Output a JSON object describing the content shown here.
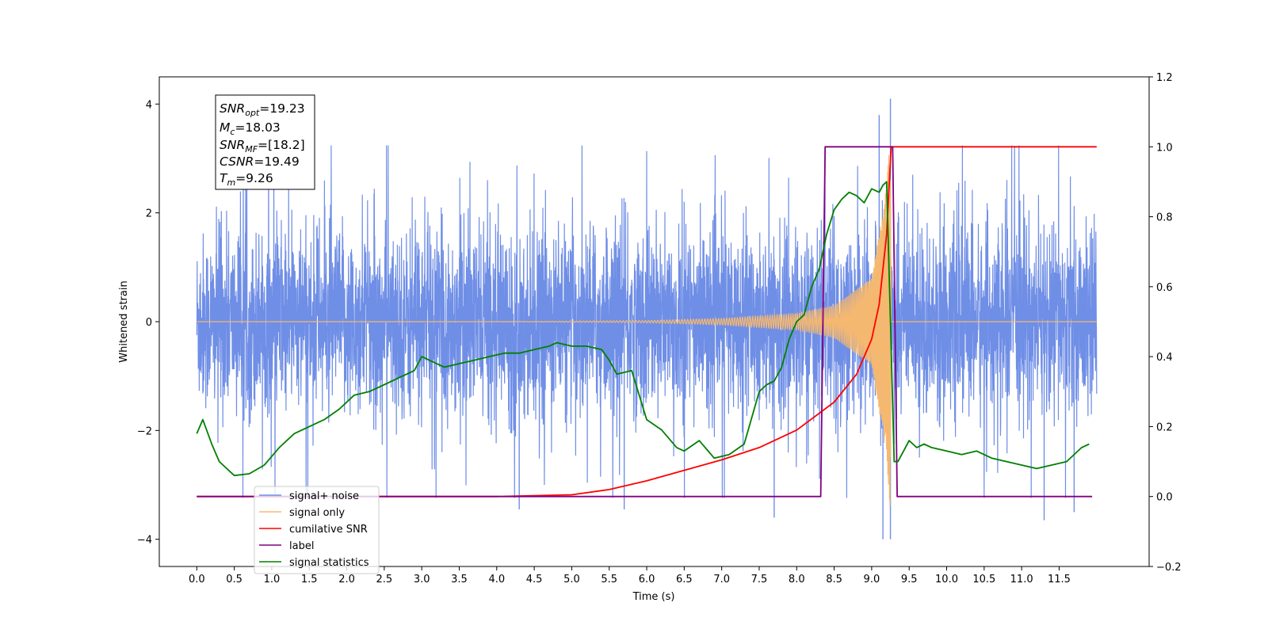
{
  "chart_data": {
    "type": "line",
    "xlabel": "Time (s)",
    "ylabel_left": "Whitened strain",
    "ylabel_right": "",
    "xlim": [
      -0.5,
      12.7
    ],
    "ylim_left": [
      -4.5,
      4.5
    ],
    "ylim_right": [
      -0.2,
      1.2
    ],
    "x_ticks": [
      0.0,
      0.5,
      1.0,
      1.5,
      2.0,
      2.5,
      3.0,
      3.5,
      4.0,
      4.5,
      5.0,
      5.5,
      6.0,
      6.5,
      7.0,
      7.5,
      8.0,
      8.5,
      9.0,
      9.5,
      10.0,
      10.5,
      11.0,
      11.5
    ],
    "x_tick_labels": [
      "0.0",
      "0.5",
      "1.0",
      "1.5",
      "2.0",
      "2.5",
      "3.0",
      "3.5",
      "4.0",
      "4.5",
      "5.0",
      "5.5",
      "6.0",
      "6.5",
      "7.0",
      "7.5",
      "8.0",
      "8.5",
      "9.0",
      "9.5",
      "10.0",
      "10.5",
      "11.0",
      "11.5"
    ],
    "y_left_ticks": [
      -4,
      -2,
      0,
      2,
      4
    ],
    "y_left_tick_labels": [
      "−4",
      "−2",
      "0",
      "2",
      "4"
    ],
    "y_right_ticks": [
      -0.2,
      0.0,
      0.2,
      0.4,
      0.6,
      0.8,
      1.0,
      1.2
    ],
    "y_right_tick_labels": [
      "−0.2",
      "0.0",
      "0.2",
      "0.4",
      "0.6",
      "0.8",
      "1.0",
      "1.2"
    ],
    "grid": false,
    "legend_position": "bottom-left",
    "annotation_box": {
      "position": "top-left",
      "lines": [
        {
          "base": "SNR",
          "sub": "opt",
          "value": "=19.23"
        },
        {
          "base": "M",
          "sub": "c",
          "value": "=18.03"
        },
        {
          "base": "SNR",
          "sub": "MF",
          "value": "=[18.2]"
        },
        {
          "base": "CSNR",
          "sub": "",
          "value": "=19.49"
        },
        {
          "base": "T",
          "sub": "m",
          "value": "=9.26"
        }
      ]
    },
    "series": [
      {
        "name": "signal+ noise",
        "axis": "left",
        "color": "#6f8ee6",
        "style": "noise",
        "x_range": [
          0.0,
          12.0
        ],
        "noise_envelope": 2.4,
        "notable_spikes": [
          [
            9.25,
            4.1
          ],
          [
            9.25,
            -4.0
          ],
          [
            9.1,
            3.8
          ],
          [
            9.15,
            -4.0
          ],
          [
            4.3,
            -3.45
          ],
          [
            5.7,
            -3.45
          ],
          [
            7.7,
            -3.6
          ],
          [
            11.3,
            -3.65
          ],
          [
            11.7,
            -3.5
          ]
        ]
      },
      {
        "name": "signal only",
        "axis": "left",
        "color": "#f5b870",
        "style": "chirp",
        "x_range": [
          0.0,
          12.0
        ],
        "merger_time": 9.26,
        "amplitude_points": [
          [
            0.0,
            0.0
          ],
          [
            4.0,
            0.0
          ],
          [
            6.0,
            0.02
          ],
          [
            7.0,
            0.06
          ],
          [
            8.0,
            0.15
          ],
          [
            8.5,
            0.3
          ],
          [
            9.0,
            0.8
          ],
          [
            9.2,
            2.5
          ],
          [
            9.25,
            3.55
          ],
          [
            9.26,
            0.0
          ],
          [
            12.0,
            0.0
          ]
        ]
      },
      {
        "name": "cumilative SNR",
        "axis": "right",
        "color": "#ff0000",
        "style": "line",
        "x": [
          0.0,
          4.0,
          5.0,
          5.5,
          6.0,
          6.5,
          7.0,
          7.5,
          8.0,
          8.5,
          8.8,
          9.0,
          9.1,
          9.2,
          9.26,
          9.3,
          12.0
        ],
        "y": [
          0.0,
          0.0,
          0.005,
          0.02,
          0.045,
          0.075,
          0.105,
          0.14,
          0.19,
          0.27,
          0.35,
          0.45,
          0.55,
          0.75,
          1.0,
          1.0,
          1.0
        ]
      },
      {
        "name": "label",
        "axis": "right",
        "color": "#800080",
        "style": "line",
        "x": [
          0.0,
          8.32,
          8.38,
          9.28,
          9.34,
          11.94
        ],
        "y": [
          0.0,
          0.0,
          1.0,
          1.0,
          0.0,
          0.0
        ]
      },
      {
        "name": "signal statistics",
        "axis": "right",
        "color": "#008000",
        "style": "line",
        "x": [
          0.0,
          0.08,
          0.2,
          0.3,
          0.5,
          0.7,
          0.9,
          1.1,
          1.3,
          1.5,
          1.7,
          1.9,
          2.1,
          2.3,
          2.5,
          2.7,
          2.9,
          3.0,
          3.1,
          3.3,
          3.5,
          3.7,
          3.9,
          4.1,
          4.3,
          4.5,
          4.7,
          4.8,
          5.0,
          5.2,
          5.4,
          5.5,
          5.6,
          5.8,
          6.0,
          6.2,
          6.4,
          6.5,
          6.7,
          6.9,
          7.1,
          7.3,
          7.5,
          7.6,
          7.7,
          7.8,
          7.9,
          8.0,
          8.1,
          8.2,
          8.3,
          8.4,
          8.5,
          8.6,
          8.7,
          8.8,
          8.9,
          9.0,
          9.1,
          9.15,
          9.2,
          9.25,
          9.3,
          9.35,
          9.4,
          9.5,
          9.6,
          9.7,
          9.8,
          10.0,
          10.2,
          10.4,
          10.6,
          10.8,
          11.0,
          11.2,
          11.4,
          11.6,
          11.8,
          11.9
        ],
        "y": [
          0.18,
          0.22,
          0.15,
          0.1,
          0.06,
          0.065,
          0.09,
          0.14,
          0.18,
          0.2,
          0.22,
          0.25,
          0.29,
          0.3,
          0.32,
          0.34,
          0.36,
          0.4,
          0.39,
          0.37,
          0.38,
          0.39,
          0.4,
          0.41,
          0.41,
          0.42,
          0.43,
          0.44,
          0.43,
          0.43,
          0.42,
          0.39,
          0.35,
          0.36,
          0.22,
          0.19,
          0.14,
          0.13,
          0.16,
          0.11,
          0.12,
          0.15,
          0.3,
          0.32,
          0.33,
          0.37,
          0.45,
          0.5,
          0.52,
          0.6,
          0.65,
          0.75,
          0.82,
          0.85,
          0.87,
          0.86,
          0.84,
          0.88,
          0.87,
          0.89,
          0.9,
          0.5,
          0.1,
          0.1,
          0.12,
          0.16,
          0.14,
          0.15,
          0.14,
          0.13,
          0.12,
          0.13,
          0.11,
          0.1,
          0.09,
          0.08,
          0.09,
          0.1,
          0.14,
          0.15
        ]
      }
    ]
  },
  "legend": {
    "entries": [
      {
        "label": "signal+ noise",
        "color": "#6f8ee6"
      },
      {
        "label": "signal only",
        "color": "#f5b870"
      },
      {
        "label": "cumilative SNR",
        "color": "#ff0000"
      },
      {
        "label": "label",
        "color": "#800080"
      },
      {
        "label": "signal statistics",
        "color": "#008000"
      }
    ]
  }
}
